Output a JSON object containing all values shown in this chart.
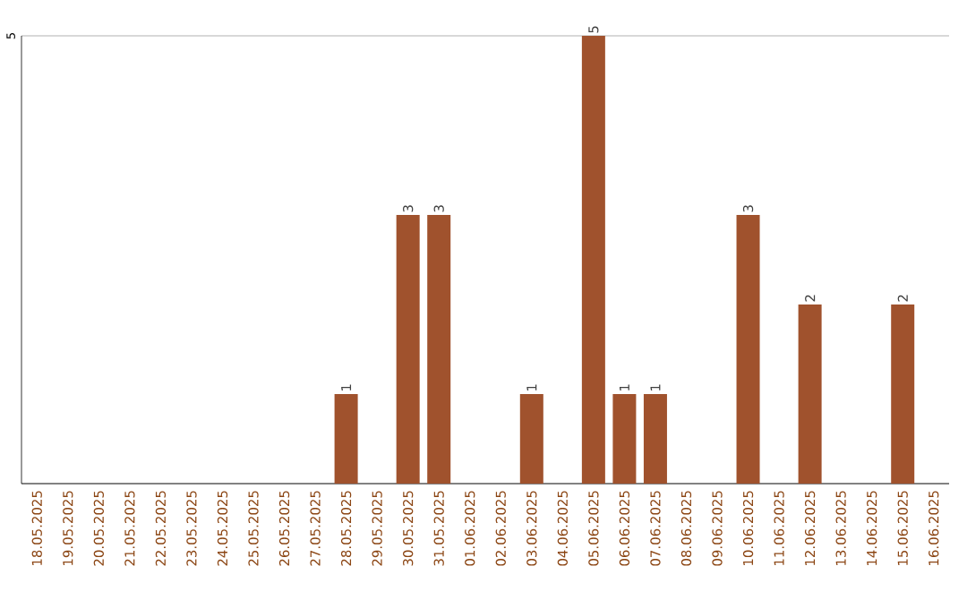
{
  "chart_data": {
    "type": "bar",
    "categories": [
      "18.05.2025",
      "19.05.2025",
      "20.05.2025",
      "21.05.2025",
      "22.05.2025",
      "23.05.2025",
      "24.05.2025",
      "25.05.2025",
      "26.05.2025",
      "27.05.2025",
      "28.05.2025",
      "29.05.2025",
      "30.05.2025",
      "31.05.2025",
      "01.06.2025",
      "02.06.2025",
      "03.06.2025",
      "04.06.2025",
      "05.06.2025",
      "06.06.2025",
      "07.06.2025",
      "08.06.2025",
      "09.06.2025",
      "10.06.2025",
      "11.06.2025",
      "12.06.2025",
      "13.06.2025",
      "14.06.2025",
      "15.06.2025",
      "16.06.2025"
    ],
    "values": [
      0,
      0,
      0,
      0,
      0,
      0,
      0,
      0,
      0,
      0,
      1,
      0,
      3,
      3,
      0,
      0,
      1,
      0,
      5,
      1,
      1,
      0,
      0,
      3,
      0,
      2,
      0,
      0,
      2,
      0
    ],
    "value_labels": [
      null,
      null,
      null,
      null,
      null,
      null,
      null,
      null,
      null,
      null,
      "1",
      null,
      "3",
      "3",
      null,
      null,
      "1",
      null,
      "5",
      "1",
      "1",
      null,
      null,
      "3",
      null,
      "2",
      null,
      null,
      "2",
      null
    ],
    "color": "#a0522d",
    "ylim": [
      0,
      5
    ],
    "yticks": [
      {
        "value": 0,
        "label": null
      },
      5
    ],
    "grid": "y"
  }
}
